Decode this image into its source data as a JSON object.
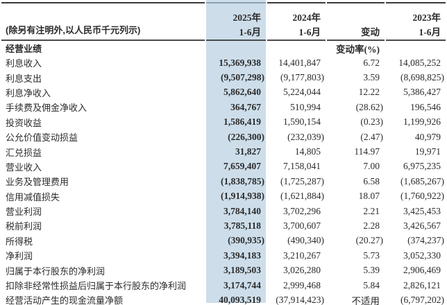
{
  "page": {
    "note_label": "(除另有注明外,以人民币千元列示)",
    "section_label": "经营业绩",
    "change_rate_header": "变动率(%)",
    "columns": {
      "c2025_line1": "2025年",
      "c2025_line2": "1-6月",
      "c2024_line1": "2024年",
      "c2024_line2": "1-6月",
      "change_line1": "",
      "change_line2": "变动",
      "c2023_line1": "2023年",
      "c2023_line2": "1-6月"
    },
    "colors": {
      "highlight_column": "#cddeea",
      "rule": "#3b3b3b",
      "text": "#2b2b2b"
    },
    "rows": [
      {
        "label": "利息收入",
        "y2025": "15,369,938",
        "y2024": "14,401,847",
        "change": "6.72",
        "y2023": "14,085,252"
      },
      {
        "label": "利息支出",
        "y2025": "(9,507,298)",
        "y2024": "(9,177,803)",
        "change": "3.59",
        "y2023": "(8,698,825)"
      },
      {
        "label": "利息净收入",
        "y2025": "5,862,640",
        "y2024": "5,224,044",
        "change": "12.22",
        "y2023": "5,386,427"
      },
      {
        "label": "手续费及佣金净收入",
        "y2025": "364,767",
        "y2024": "510,994",
        "change": "(28.62)",
        "y2023": "196,546"
      },
      {
        "label": "投资收益",
        "y2025": "1,586,419",
        "y2024": "1,590,154",
        "change": "(0.23)",
        "y2023": "1,199,926"
      },
      {
        "label": "公允价值变动损益",
        "y2025": "(226,300)",
        "y2024": "(232,039)",
        "change": "(2.47)",
        "y2023": "40,979"
      },
      {
        "label": "汇兑损益",
        "y2025": "31,827",
        "y2024": "14,805",
        "change": "114.97",
        "y2023": "19,971"
      },
      {
        "label": "营业收入",
        "y2025": "7,659,407",
        "y2024": "7,158,041",
        "change": "7.00",
        "y2023": "6,975,235"
      },
      {
        "label": "业务及管理费用",
        "y2025": "(1,838,785)",
        "y2024": "(1,725,287)",
        "change": "6.58",
        "y2023": "(1,685,267)"
      },
      {
        "label": "信用减值损失",
        "y2025": "(1,914,938)",
        "y2024": "(1,621,884)",
        "change": "18.07",
        "y2023": "(1,760,922)"
      },
      {
        "label": "营业利润",
        "y2025": "3,784,140",
        "y2024": "3,702,296",
        "change": "2.21",
        "y2023": "3,425,453"
      },
      {
        "label": "税前利润",
        "y2025": "3,785,118",
        "y2024": "3,700,607",
        "change": "2.28",
        "y2023": "3,426,567"
      },
      {
        "label": "所得税",
        "y2025": "(390,935)",
        "y2024": "(490,340)",
        "change": "(20.27)",
        "y2023": "(374,237)"
      },
      {
        "label": "净利润",
        "y2025": "3,394,183",
        "y2024": "3,210,267",
        "change": "5.73",
        "y2023": "3,052,330"
      },
      {
        "label": "归属于本行股东的净利润",
        "y2025": "3,189,503",
        "y2024": "3,026,280",
        "change": "5.39",
        "y2023": "2,906,469"
      },
      {
        "label": "扣除非经常性损益后归属于本行股东的净利润",
        "y2025": "3,174,744",
        "y2024": "2,999,468",
        "change": "5.84",
        "y2023": "2,826,121"
      },
      {
        "label": "经营活动产生的现金流量净额",
        "y2025": "40,093,519",
        "y2024": "(37,914,423)",
        "change": "不适用",
        "y2023": "(6,797,202)"
      }
    ]
  }
}
